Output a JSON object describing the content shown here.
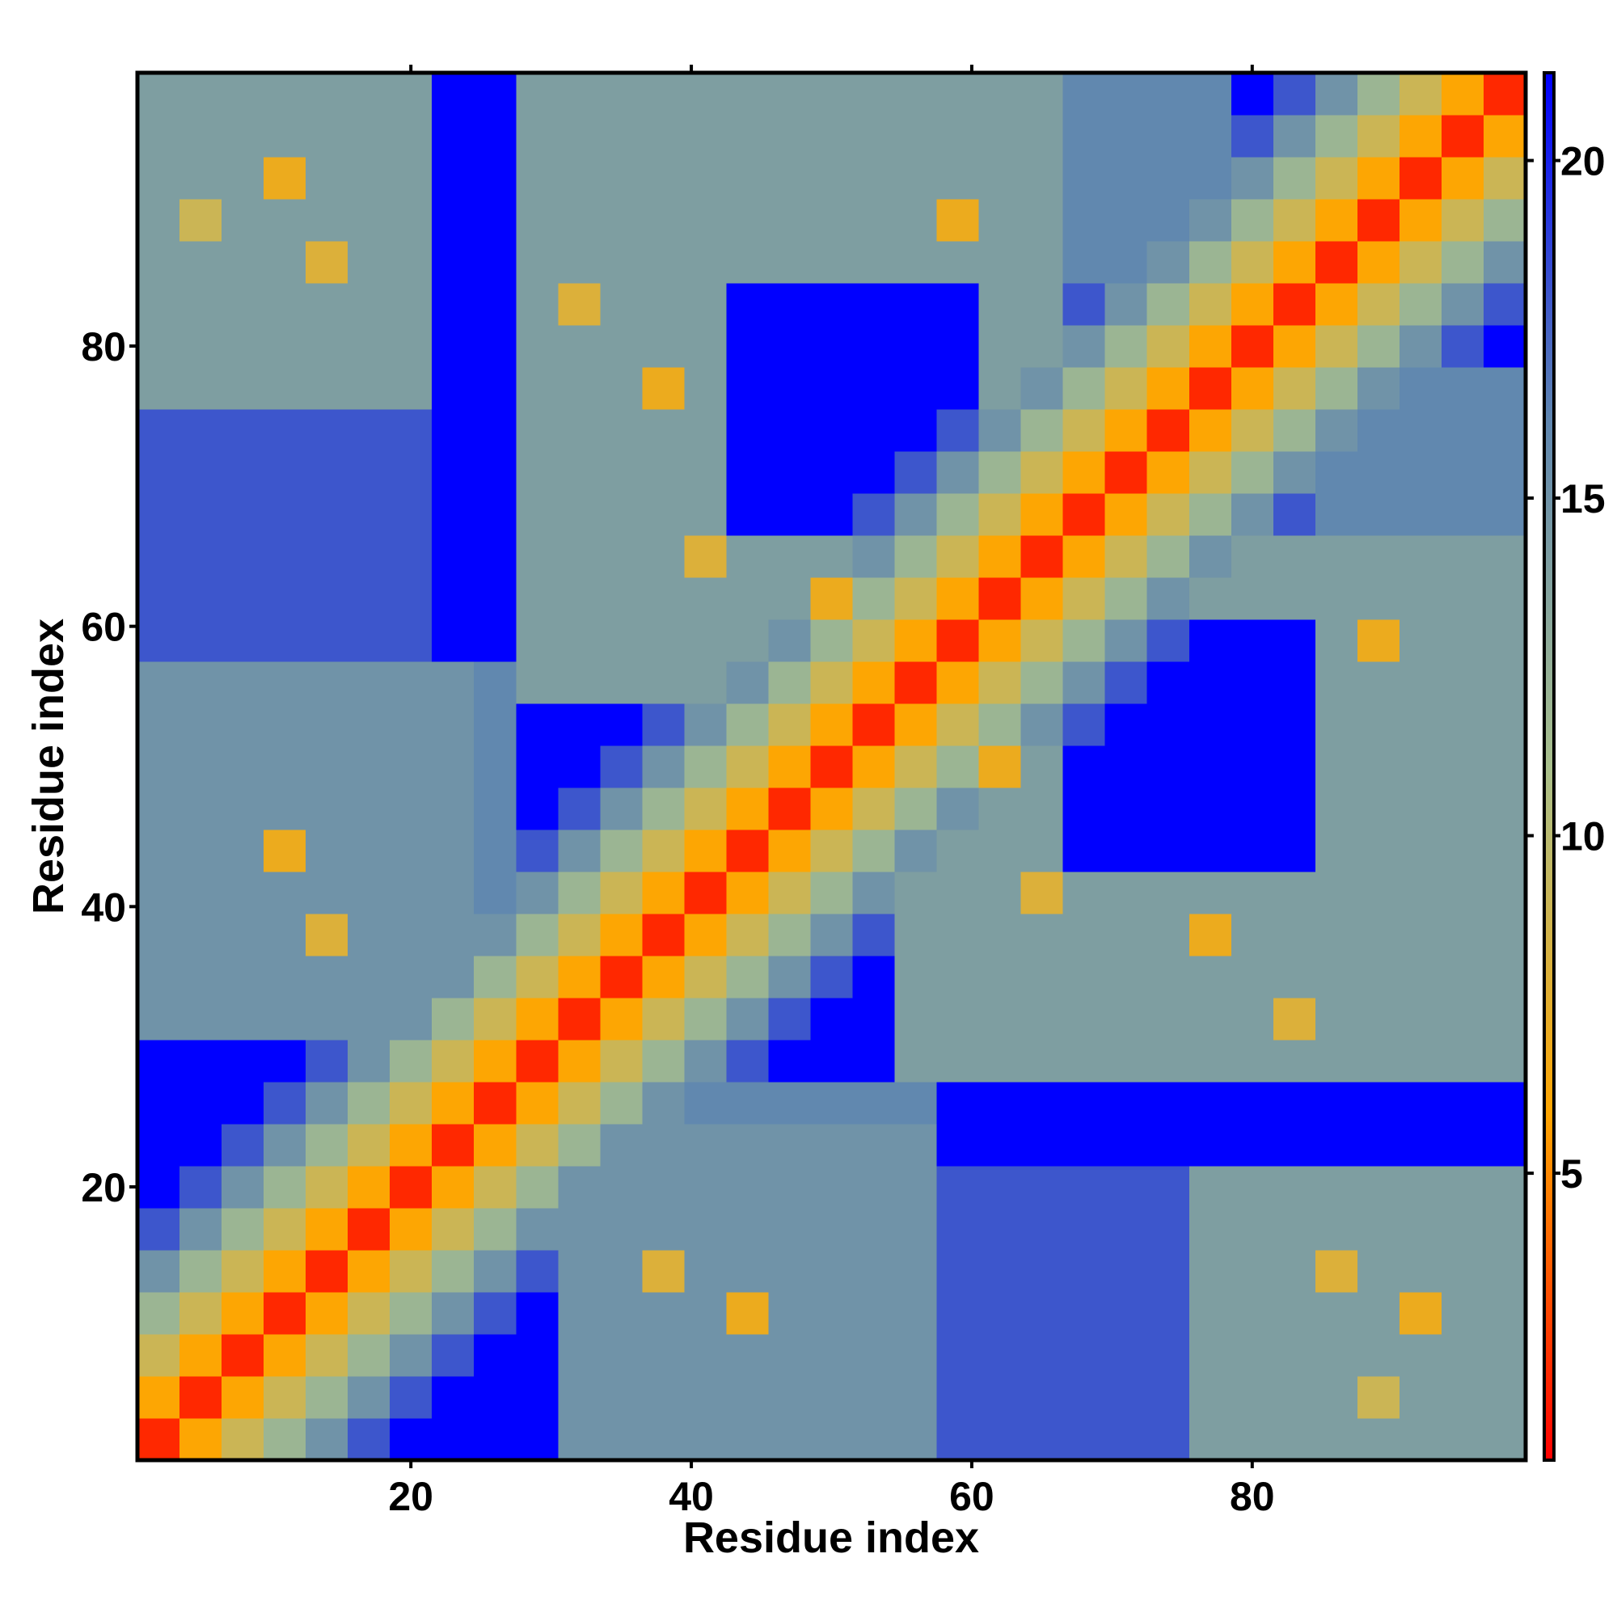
{
  "chart_data": {
    "type": "heatmap",
    "xlabel": "Residue index",
    "ylabel": "Residue index",
    "x": [
      2,
      5,
      8,
      11,
      14,
      17,
      20,
      23,
      26,
      29,
      32,
      35,
      38,
      41,
      44,
      47,
      50,
      53,
      56,
      59,
      62,
      65,
      68,
      71,
      74,
      77,
      80,
      83,
      86,
      89,
      92,
      95,
      98
    ],
    "y": [
      2,
      5,
      8,
      11,
      14,
      17,
      20,
      23,
      26,
      29,
      32,
      35,
      38,
      41,
      44,
      47,
      50,
      53,
      56,
      59,
      62,
      65,
      68,
      71,
      74,
      77,
      80,
      83,
      86,
      89,
      92,
      95,
      98
    ],
    "z": [
      [
        2,
        6,
        9,
        12,
        15,
        18,
        22,
        22,
        22,
        22,
        15,
        15,
        15,
        15,
        15,
        15,
        15,
        15,
        15,
        18,
        18,
        18,
        18,
        18,
        18,
        14,
        14,
        14,
        14,
        14,
        14,
        14,
        14
      ],
      [
        6,
        2,
        6,
        9,
        12,
        15,
        18,
        22,
        22,
        22,
        15,
        15,
        15,
        15,
        15,
        15,
        15,
        15,
        15,
        18,
        18,
        18,
        18,
        18,
        18,
        14,
        14,
        14,
        14,
        9,
        14,
        14,
        14
      ],
      [
        9,
        6,
        2,
        6,
        9,
        12,
        15,
        18,
        22,
        22,
        15,
        15,
        15,
        15,
        15,
        15,
        15,
        15,
        15,
        18,
        18,
        18,
        18,
        18,
        18,
        14,
        14,
        14,
        14,
        14,
        14,
        14,
        14
      ],
      [
        12,
        9,
        6,
        2,
        6,
        9,
        12,
        15,
        18,
        22,
        15,
        15,
        15,
        15,
        7,
        15,
        15,
        15,
        15,
        18,
        18,
        18,
        18,
        18,
        18,
        14,
        14,
        14,
        14,
        14,
        7,
        14,
        14
      ],
      [
        15,
        12,
        9,
        6,
        2,
        6,
        9,
        12,
        15,
        18,
        15,
        15,
        8,
        15,
        15,
        15,
        15,
        15,
        15,
        18,
        18,
        18,
        18,
        18,
        18,
        14,
        14,
        14,
        8,
        14,
        14,
        14,
        14
      ],
      [
        18,
        15,
        12,
        9,
        6,
        2,
        6,
        9,
        12,
        15,
        15,
        15,
        15,
        15,
        15,
        15,
        15,
        15,
        15,
        18,
        18,
        18,
        18,
        18,
        18,
        14,
        14,
        14,
        14,
        14,
        14,
        14,
        14
      ],
      [
        22,
        18,
        15,
        12,
        9,
        6,
        2,
        6,
        9,
        12,
        15,
        15,
        15,
        15,
        15,
        15,
        15,
        15,
        15,
        18,
        18,
        18,
        18,
        18,
        18,
        14,
        14,
        14,
        14,
        14,
        14,
        14,
        14
      ],
      [
        22,
        22,
        18,
        15,
        12,
        9,
        6,
        2,
        6,
        9,
        12,
        15,
        15,
        15,
        15,
        15,
        15,
        15,
        15,
        22,
        22,
        22,
        22,
        22,
        22,
        22,
        22,
        22,
        22,
        22,
        22,
        22,
        22
      ],
      [
        22,
        22,
        22,
        18,
        15,
        12,
        9,
        6,
        2,
        6,
        9,
        12,
        15,
        16,
        16,
        16,
        16,
        16,
        16,
        22,
        22,
        22,
        22,
        22,
        22,
        22,
        22,
        22,
        22,
        22,
        22,
        22,
        22
      ],
      [
        22,
        22,
        22,
        22,
        18,
        15,
        12,
        9,
        6,
        2,
        6,
        9,
        12,
        15,
        18,
        22,
        22,
        22,
        14,
        14,
        14,
        14,
        14,
        14,
        14,
        14,
        14,
        14,
        14,
        14,
        14,
        14,
        14
      ],
      [
        15,
        15,
        15,
        15,
        15,
        15,
        15,
        12,
        9,
        6,
        2,
        6,
        9,
        12,
        15,
        18,
        22,
        22,
        14,
        14,
        14,
        14,
        14,
        14,
        14,
        14,
        14,
        8,
        14,
        14,
        14,
        14,
        14
      ],
      [
        15,
        15,
        15,
        15,
        15,
        15,
        15,
        15,
        12,
        9,
        6,
        2,
        6,
        9,
        12,
        15,
        18,
        22,
        14,
        14,
        14,
        14,
        14,
        14,
        14,
        14,
        14,
        14,
        14,
        14,
        14,
        14,
        14
      ],
      [
        15,
        15,
        15,
        15,
        8,
        15,
        15,
        15,
        15,
        12,
        9,
        6,
        2,
        6,
        9,
        12,
        15,
        18,
        14,
        14,
        14,
        14,
        14,
        14,
        14,
        7,
        14,
        14,
        14,
        14,
        14,
        14,
        14
      ],
      [
        15,
        15,
        15,
        15,
        15,
        15,
        15,
        15,
        16,
        15,
        12,
        9,
        6,
        2,
        6,
        9,
        12,
        15,
        14,
        14,
        14,
        8,
        14,
        14,
        14,
        14,
        14,
        14,
        14,
        14,
        14,
        14,
        14
      ],
      [
        15,
        15,
        15,
        7,
        15,
        15,
        15,
        15,
        16,
        18,
        15,
        12,
        9,
        6,
        2,
        6,
        9,
        12,
        15,
        14,
        14,
        14,
        22,
        22,
        22,
        22,
        22,
        22,
        14,
        14,
        14,
        14,
        14
      ],
      [
        15,
        15,
        15,
        15,
        15,
        15,
        15,
        15,
        16,
        22,
        18,
        15,
        12,
        9,
        6,
        2,
        6,
        9,
        12,
        15,
        14,
        14,
        22,
        22,
        22,
        22,
        22,
        22,
        14,
        14,
        14,
        14,
        14
      ],
      [
        15,
        15,
        15,
        15,
        15,
        15,
        15,
        15,
        16,
        22,
        22,
        18,
        15,
        12,
        9,
        6,
        2,
        6,
        9,
        12,
        7,
        14,
        22,
        22,
        22,
        22,
        22,
        22,
        14,
        14,
        14,
        14,
        14
      ],
      [
        15,
        15,
        15,
        15,
        15,
        15,
        15,
        15,
        16,
        22,
        22,
        22,
        18,
        15,
        12,
        9,
        6,
        2,
        6,
        9,
        12,
        15,
        18,
        22,
        22,
        22,
        22,
        22,
        14,
        14,
        14,
        14,
        14
      ],
      [
        15,
        15,
        15,
        15,
        15,
        15,
        15,
        15,
        16,
        14,
        14,
        14,
        14,
        14,
        15,
        12,
        9,
        6,
        2,
        6,
        9,
        12,
        15,
        18,
        22,
        22,
        22,
        22,
        14,
        14,
        14,
        14,
        14
      ],
      [
        18,
        18,
        18,
        18,
        18,
        18,
        18,
        22,
        22,
        14,
        14,
        14,
        14,
        14,
        14,
        15,
        12,
        9,
        6,
        2,
        6,
        9,
        12,
        15,
        18,
        22,
        22,
        22,
        14,
        7,
        14,
        14,
        14
      ],
      [
        18,
        18,
        18,
        18,
        18,
        18,
        18,
        22,
        22,
        14,
        14,
        14,
        14,
        14,
        14,
        14,
        7,
        12,
        9,
        6,
        2,
        6,
        9,
        12,
        15,
        14,
        14,
        14,
        14,
        14,
        14,
        14,
        14
      ],
      [
        18,
        18,
        18,
        18,
        18,
        18,
        18,
        22,
        22,
        14,
        14,
        14,
        14,
        8,
        14,
        14,
        14,
        15,
        12,
        9,
        6,
        2,
        6,
        9,
        12,
        15,
        14,
        14,
        14,
        14,
        14,
        14,
        14
      ],
      [
        18,
        18,
        18,
        18,
        18,
        18,
        18,
        22,
        22,
        14,
        14,
        14,
        14,
        14,
        22,
        22,
        22,
        18,
        15,
        12,
        9,
        6,
        2,
        6,
        9,
        12,
        15,
        18,
        16,
        16,
        16,
        16,
        16
      ],
      [
        18,
        18,
        18,
        18,
        18,
        18,
        18,
        22,
        22,
        14,
        14,
        14,
        14,
        14,
        22,
        22,
        22,
        22,
        18,
        15,
        12,
        9,
        6,
        2,
        6,
        9,
        12,
        15,
        16,
        16,
        16,
        16,
        16
      ],
      [
        18,
        18,
        18,
        18,
        18,
        18,
        18,
        22,
        22,
        14,
        14,
        14,
        14,
        14,
        22,
        22,
        22,
        22,
        22,
        18,
        15,
        12,
        9,
        6,
        2,
        6,
        9,
        12,
        15,
        16,
        16,
        16,
        16
      ],
      [
        14,
        14,
        14,
        14,
        14,
        14,
        14,
        22,
        22,
        14,
        14,
        14,
        7,
        14,
        22,
        22,
        22,
        22,
        22,
        22,
        14,
        15,
        12,
        9,
        6,
        2,
        6,
        9,
        12,
        15,
        16,
        16,
        16
      ],
      [
        14,
        14,
        14,
        14,
        14,
        14,
        14,
        22,
        22,
        14,
        14,
        14,
        14,
        14,
        22,
        22,
        22,
        22,
        22,
        22,
        14,
        14,
        15,
        12,
        9,
        6,
        2,
        6,
        9,
        12,
        15,
        18,
        22
      ],
      [
        14,
        14,
        14,
        14,
        14,
        14,
        14,
        22,
        22,
        14,
        8,
        14,
        14,
        14,
        22,
        22,
        22,
        22,
        22,
        22,
        14,
        14,
        18,
        15,
        12,
        9,
        6,
        2,
        6,
        9,
        12,
        15,
        18
      ],
      [
        14,
        14,
        14,
        14,
        8,
        14,
        14,
        22,
        22,
        14,
        14,
        14,
        14,
        14,
        14,
        14,
        14,
        14,
        14,
        14,
        14,
        14,
        16,
        16,
        15,
        12,
        9,
        6,
        2,
        6,
        9,
        12,
        15
      ],
      [
        14,
        9,
        14,
        14,
        14,
        14,
        14,
        22,
        22,
        14,
        14,
        14,
        14,
        14,
        14,
        14,
        14,
        14,
        14,
        7,
        14,
        14,
        16,
        16,
        16,
        15,
        12,
        9,
        6,
        2,
        6,
        9,
        12
      ],
      [
        14,
        14,
        14,
        7,
        14,
        14,
        14,
        22,
        22,
        14,
        14,
        14,
        14,
        14,
        14,
        14,
        14,
        14,
        14,
        14,
        14,
        14,
        16,
        16,
        16,
        16,
        15,
        12,
        9,
        6,
        2,
        6,
        9
      ],
      [
        14,
        14,
        14,
        14,
        14,
        14,
        14,
        22,
        22,
        14,
        14,
        14,
        14,
        14,
        14,
        14,
        14,
        14,
        14,
        14,
        14,
        14,
        16,
        16,
        16,
        16,
        18,
        15,
        12,
        9,
        6,
        2,
        6
      ],
      [
        14,
        14,
        14,
        14,
        14,
        14,
        14,
        22,
        22,
        14,
        14,
        14,
        14,
        14,
        14,
        14,
        14,
        14,
        14,
        14,
        14,
        14,
        16,
        16,
        16,
        16,
        22,
        18,
        15,
        12,
        9,
        6,
        2
      ]
    ],
    "xlim": [
      0.5,
      99.5
    ],
    "ylim": [
      0.5,
      99.5
    ],
    "xticks": [
      20,
      40,
      60,
      80
    ],
    "yticks": [
      20,
      40,
      60,
      80
    ],
    "colorbar": {
      "lim": [
        0.75,
        21.3
      ],
      "ticks": [
        5,
        10,
        15,
        20
      ]
    },
    "colors": [
      "#ff0000",
      "#ffa500",
      "#a9c08c",
      "#5f86b0",
      "#0000ff"
    ]
  }
}
